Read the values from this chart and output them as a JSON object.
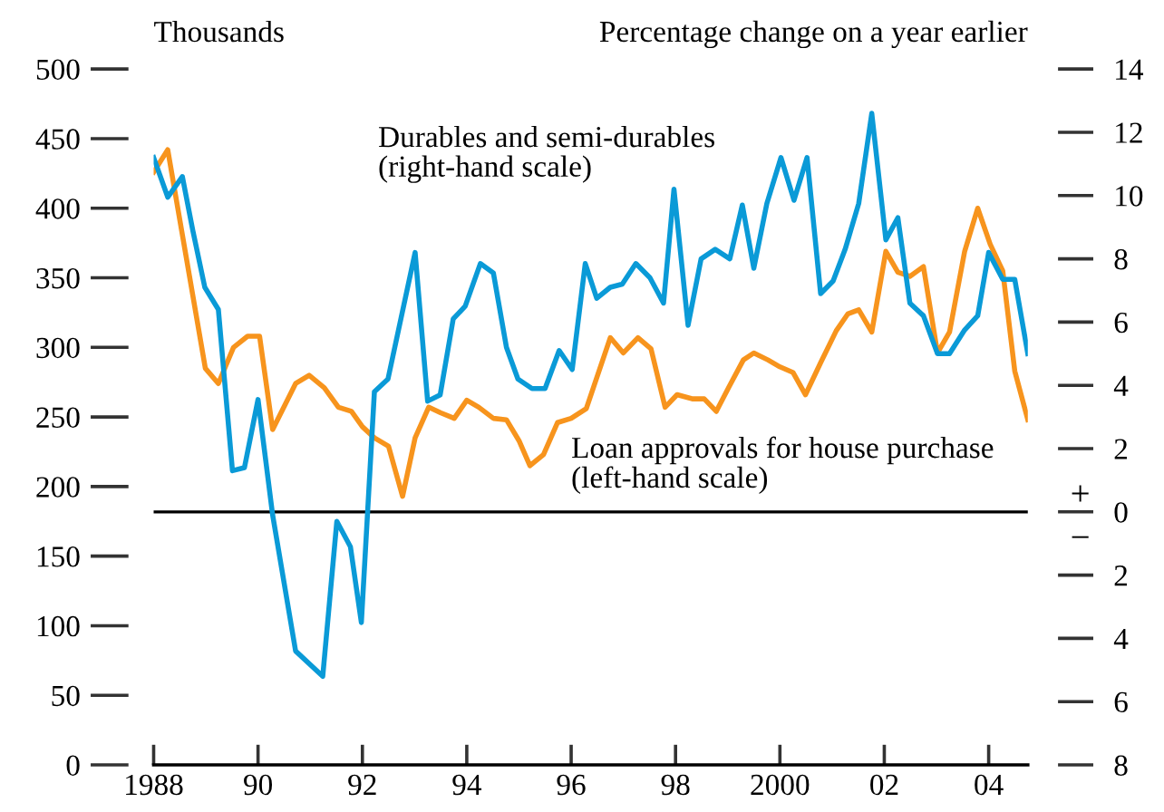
{
  "chart_data": {
    "type": "line",
    "ylabel": "Thousands",
    "y2label": "Percentage change on a year earlier",
    "xlim": [
      1988,
      2004.75
    ],
    "xticks": [
      {
        "value": 1988,
        "label": "1988"
      },
      {
        "value": 1990,
        "label": "90"
      },
      {
        "value": 1992,
        "label": "92"
      },
      {
        "value": 1994,
        "label": "94"
      },
      {
        "value": 1996,
        "label": "96"
      },
      {
        "value": 1998,
        "label": "98"
      },
      {
        "value": 2000,
        "label": "2000"
      },
      {
        "value": 2002,
        "label": "02"
      },
      {
        "value": 2004,
        "label": "04"
      }
    ],
    "ylim": [
      0,
      500
    ],
    "yticks": [
      0,
      50,
      100,
      150,
      200,
      250,
      300,
      350,
      400,
      450,
      500
    ],
    "y2lim": [
      -8,
      14
    ],
    "y2ticks": [
      {
        "value": -8,
        "label": "8"
      },
      {
        "value": -6,
        "label": "6"
      },
      {
        "value": -4,
        "label": "4"
      },
      {
        "value": -2,
        "label": "2"
      },
      0,
      2,
      4,
      6,
      8,
      10,
      12,
      14
    ],
    "grid": false,
    "legend": false,
    "marker": "none",
    "line_style": "solid",
    "ref_lines": [
      {
        "axis": "y2",
        "value": 0,
        "color": "#000000"
      }
    ],
    "annotations": [
      "+",
      "−"
    ],
    "series": [
      {
        "name": "Durables and semi-durables\n(right-hand scale)",
        "color": "#0a9ad7",
        "axis": "y2",
        "x": [
          1988.0,
          1988.27,
          1988.55,
          1988.75,
          1988.98,
          1989.24,
          1989.51,
          1989.74,
          1990.0,
          1990.28,
          1990.72,
          1991.24,
          1991.51,
          1991.77,
          1991.98,
          1992.23,
          1992.49,
          1993.01,
          1993.25,
          1993.49,
          1993.74,
          1993.97,
          1994.26,
          1994.51,
          1994.76,
          1994.98,
          1995.25,
          1995.5,
          1995.77,
          1996.02,
          1996.27,
          1996.49,
          1996.75,
          1996.98,
          1997.24,
          1997.51,
          1997.77,
          1997.97,
          1998.24,
          1998.49,
          1998.76,
          1999.04,
          1999.28,
          1999.5,
          1999.75,
          2000.02,
          2000.27,
          2000.52,
          2000.78,
          2001.02,
          2001.25,
          2001.51,
          2001.76,
          2002.03,
          2002.26,
          2002.49,
          2002.75,
          2003.02,
          2003.25,
          2003.54,
          2003.79,
          2004.0,
          2004.27,
          2004.5,
          2004.75
        ],
        "values": [
          11.2,
          9.95,
          10.6,
          8.9,
          7.1,
          6.4,
          1.3,
          1.4,
          3.55,
          -0.1,
          -4.4,
          -5.2,
          -0.3,
          -1.1,
          -3.5,
          3.8,
          4.2,
          8.2,
          3.5,
          3.7,
          6.1,
          6.5,
          7.85,
          7.55,
          5.2,
          4.2,
          3.9,
          3.9,
          5.1,
          4.5,
          7.85,
          6.75,
          7.1,
          7.2,
          7.85,
          7.4,
          6.6,
          10.2,
          5.9,
          8.0,
          8.3,
          8.0,
          9.7,
          7.7,
          9.75,
          11.2,
          9.85,
          11.2,
          6.9,
          7.3,
          8.3,
          9.75,
          12.6,
          8.6,
          9.3,
          6.6,
          6.2,
          5.0,
          5.0,
          5.75,
          6.2,
          8.2,
          7.35,
          7.35,
          5.0
        ]
      },
      {
        "name": "Loan approvals for house purchase\n(left-hand scale)",
        "color": "#f7941d",
        "x": [
          1988.0,
          1988.27,
          1988.99,
          1989.24,
          1989.53,
          1989.8,
          1990.03,
          1990.28,
          1990.72,
          1990.98,
          1991.27,
          1991.54,
          1991.79,
          1992.0,
          1992.23,
          1992.5,
          1992.77,
          1993.01,
          1993.27,
          1993.5,
          1993.76,
          1994.0,
          1994.23,
          1994.51,
          1994.76,
          1995.0,
          1995.21,
          1995.47,
          1995.74,
          1996.0,
          1996.29,
          1996.75,
          1997.0,
          1997.28,
          1997.53,
          1997.8,
          1998.03,
          1998.32,
          1998.55,
          1998.78,
          1999.03,
          1999.3,
          1999.5,
          1999.77,
          2000.0,
          2000.25,
          2000.49,
          2000.78,
          2001.08,
          2001.3,
          2001.51,
          2001.76,
          2002.03,
          2002.26,
          2002.49,
          2002.75,
          2003.02,
          2003.25,
          2003.54,
          2003.79,
          2004.03,
          2004.27,
          2004.5,
          2004.75
        ],
        "values": [
          426,
          442,
          285,
          274,
          300,
          308,
          308,
          241,
          274,
          280,
          271,
          257,
          254,
          243,
          235,
          229,
          193,
          235,
          257,
          253,
          249,
          262,
          257,
          249,
          248,
          233,
          215,
          223,
          246,
          249,
          256,
          307,
          296,
          307,
          299,
          257,
          266,
          263,
          263,
          254,
          272,
          291,
          296,
          291,
          286,
          282,
          266,
          289,
          312,
          324,
          327,
          311,
          369,
          354,
          351,
          358,
          296,
          311,
          369,
          400,
          374,
          355,
          283,
          248
        ]
      }
    ]
  }
}
